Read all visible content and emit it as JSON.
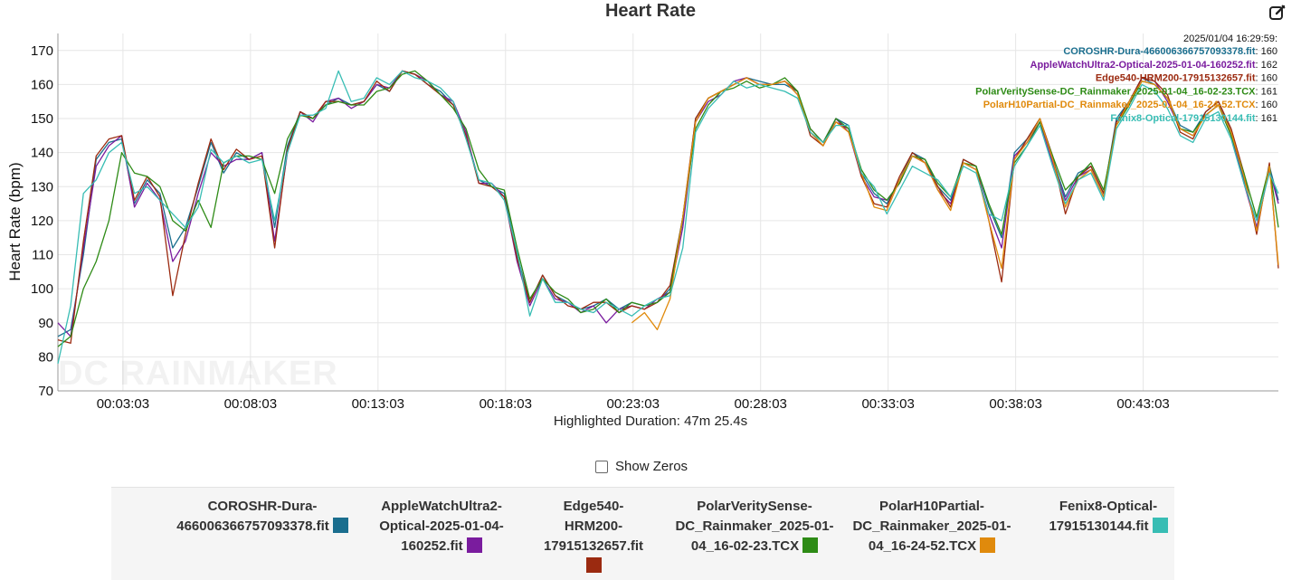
{
  "toolbar": {
    "edit_icon": "edit-square-icon"
  },
  "footer": {
    "duration_text": "Highlighted Duration: 47m 25.4s",
    "show_zeros_label": "Show Zeros",
    "show_zeros_checked": false
  },
  "chart_data": {
    "type": "line",
    "title": "Heart Rate",
    "ylabel": "Heart Rate (bpm)",
    "xlabel": "",
    "ylim": [
      70,
      175
    ],
    "yticks": [
      70,
      80,
      90,
      100,
      110,
      120,
      130,
      140,
      150,
      160,
      170
    ],
    "xlim": [
      0.5,
      48.35
    ],
    "xticks": [
      3.05,
      8.05,
      13.05,
      18.05,
      23.05,
      28.05,
      33.05,
      38.05,
      43.05
    ],
    "xtick_labels": [
      "00:03:03",
      "00:08:03",
      "00:13:03",
      "00:18:03",
      "00:23:03",
      "00:28:03",
      "00:33:03",
      "00:38:03",
      "00:43:03"
    ],
    "grid": true,
    "watermark": "DC RAINMAKER",
    "hover": {
      "timestamp": "2025/01/04 16:29:59:",
      "entries": [
        {
          "name": "COROSHR-Dura-466006366757093378.fit",
          "value": 160
        },
        {
          "name": "AppleWatchUltra2-Optical-2025-01-04-160252.fit",
          "value": 162
        },
        {
          "name": "Edge540-HRM200-17915132657.fit",
          "value": 160
        },
        {
          "name": "PolarVeritySense-DC_Rainmaker_2025-01-04_16-02-23.TCX",
          "value": 161
        },
        {
          "name": "PolarH10Partial-DC_Rainmaker_2025-01-04_16-24-52.TCX",
          "value": 160
        },
        {
          "name": "Fenix8-Optical-17915130144.fit",
          "value": 161
        }
      ]
    },
    "x": [
      0.5,
      1.0,
      1.5,
      2.0,
      2.5,
      3.0,
      3.5,
      4.0,
      4.5,
      5.0,
      5.5,
      6.0,
      6.5,
      7.0,
      7.5,
      8.0,
      8.5,
      9.0,
      9.5,
      10.0,
      10.5,
      11.0,
      11.5,
      12.0,
      12.5,
      13.0,
      13.5,
      14.0,
      14.5,
      15.0,
      15.5,
      16.0,
      16.5,
      17.0,
      17.5,
      18.0,
      18.5,
      19.0,
      19.5,
      20.0,
      20.5,
      21.0,
      21.5,
      22.0,
      22.5,
      23.0,
      23.5,
      24.0,
      24.5,
      25.0,
      25.5,
      26.0,
      26.5,
      27.0,
      27.5,
      28.0,
      28.5,
      29.0,
      29.5,
      30.0,
      30.5,
      31.0,
      31.5,
      32.0,
      32.5,
      33.0,
      33.5,
      34.0,
      34.5,
      35.0,
      35.5,
      36.0,
      36.5,
      37.0,
      37.5,
      38.0,
      38.5,
      39.0,
      39.5,
      40.0,
      40.5,
      41.0,
      41.5,
      42.0,
      42.5,
      43.0,
      43.5,
      44.0,
      44.5,
      45.0,
      45.5,
      46.0,
      46.5,
      47.0,
      47.5,
      48.0,
      48.35
    ],
    "series": [
      {
        "name": "COROSHR-Dura-466006366757093378.fit",
        "color": "#1a6e8e",
        "values": [
          86,
          88,
          110,
          138,
          143,
          144,
          125,
          132,
          128,
          112,
          118,
          130,
          143,
          134,
          140,
          138,
          140,
          118,
          142,
          152,
          150,
          154,
          156,
          154,
          155,
          160,
          158,
          164,
          163,
          160,
          158,
          154,
          145,
          132,
          130,
          128,
          110,
          96,
          104,
          98,
          96,
          94,
          95,
          97,
          94,
          96,
          95,
          96,
          100,
          120,
          150,
          156,
          158,
          160,
          162,
          161,
          160,
          160,
          158,
          146,
          142,
          150,
          148,
          134,
          128,
          125,
          132,
          140,
          138,
          130,
          126,
          138,
          136,
          124,
          115,
          140,
          144,
          150,
          138,
          127,
          134,
          136,
          128,
          150,
          155,
          162,
          160,
          156,
          148,
          146,
          152,
          155,
          146,
          132,
          118,
          136,
          126
        ]
      },
      {
        "name": "AppleWatchUltra2-Optical-2025-01-04-160252.fit",
        "color": "#7a1c9e",
        "values": [
          90,
          86,
          112,
          136,
          142,
          145,
          124,
          131,
          126,
          108,
          114,
          128,
          140,
          136,
          138,
          138,
          140,
          114,
          140,
          152,
          149,
          155,
          156,
          153,
          155,
          160,
          159,
          164,
          163,
          161,
          157,
          155,
          146,
          131,
          131,
          127,
          108,
          95,
          103,
          97,
          96,
          93,
          95,
          90,
          94,
          95,
          94,
          97,
          99,
          118,
          149,
          155,
          157,
          161,
          162,
          160,
          160,
          161,
          157,
          147,
          143,
          150,
          146,
          133,
          127,
          126,
          131,
          139,
          137,
          129,
          125,
          137,
          135,
          122,
          112,
          139,
          143,
          149,
          137,
          126,
          133,
          135,
          127,
          149,
          154,
          162,
          161,
          155,
          147,
          145,
          151,
          154,
          145,
          131,
          118,
          135,
          125
        ]
      },
      {
        "name": "Edge540-HRM200-17915132657.fit",
        "color": "#9b2a10",
        "values": [
          85,
          84,
          114,
          139,
          144,
          145,
          126,
          133,
          127,
          98,
          116,
          131,
          144,
          135,
          141,
          138,
          139,
          112,
          141,
          152,
          150,
          155,
          155,
          154,
          155,
          161,
          158,
          164,
          163,
          160,
          157,
          154,
          145,
          131,
          130,
          127,
          109,
          96,
          104,
          98,
          95,
          94,
          96,
          96,
          93,
          95,
          94,
          96,
          101,
          121,
          150,
          156,
          158,
          160,
          162,
          160,
          160,
          161,
          158,
          145,
          142,
          149,
          147,
          133,
          125,
          124,
          133,
          140,
          137,
          130,
          124,
          138,
          136,
          120,
          102,
          138,
          144,
          150,
          139,
          122,
          133,
          136,
          128,
          149,
          155,
          162,
          161,
          157,
          146,
          144,
          152,
          155,
          147,
          134,
          116,
          137,
          106
        ]
      },
      {
        "name": "PolarVeritySense-DC_Rainmaker_2025-01-04_16-02-23.TCX",
        "color": "#2e8b16",
        "values": [
          83,
          86,
          100,
          108,
          120,
          140,
          134,
          133,
          130,
          120,
          117,
          126,
          118,
          137,
          139,
          139,
          138,
          128,
          144,
          151,
          150,
          154,
          155,
          154,
          154,
          158,
          159,
          163,
          164,
          161,
          157,
          153,
          147,
          135,
          130,
          129,
          112,
          97,
          103,
          99,
          97,
          93,
          94,
          97,
          93,
          96,
          95,
          96,
          99,
          121,
          147,
          154,
          158,
          159,
          161,
          159,
          160,
          162,
          158,
          147,
          143,
          150,
          147,
          135,
          129,
          126,
          131,
          139,
          138,
          131,
          127,
          137,
          136,
          125,
          116,
          137,
          142,
          149,
          139,
          129,
          133,
          137,
          129,
          148,
          154,
          161,
          160,
          156,
          147,
          146,
          151,
          154,
          145,
          134,
          121,
          136,
          118
        ]
      },
      {
        "name": "PolarH10Partial-DC_Rainmaker_2025-01-04_16-24-52.TCX",
        "color": "#e08a0c",
        "values": [
          null,
          null,
          null,
          null,
          null,
          null,
          null,
          null,
          null,
          null,
          null,
          null,
          null,
          null,
          null,
          null,
          null,
          null,
          null,
          null,
          null,
          null,
          null,
          null,
          null,
          null,
          null,
          null,
          null,
          null,
          null,
          null,
          null,
          null,
          null,
          null,
          null,
          null,
          null,
          null,
          null,
          null,
          null,
          null,
          null,
          90,
          93,
          88,
          97,
          121,
          149,
          156,
          158,
          160,
          162,
          160,
          160,
          161,
          157,
          146,
          142,
          149,
          146,
          134,
          124,
          123,
          132,
          139,
          137,
          129,
          123,
          137,
          135,
          120,
          106,
          138,
          143,
          150,
          138,
          124,
          132,
          135,
          127,
          148,
          155,
          161,
          160,
          156,
          147,
          145,
          151,
          154,
          146,
          133,
          117,
          136,
          107
        ]
      },
      {
        "name": "Fenix8-Optical-17915130144.fit",
        "color": "#38bdb4",
        "values": [
          78,
          95,
          128,
          132,
          140,
          143,
          128,
          130,
          126,
          122,
          118,
          124,
          141,
          137,
          139,
          137,
          138,
          120,
          140,
          151,
          151,
          153,
          164,
          155,
          156,
          162,
          160,
          164,
          162,
          161,
          159,
          155,
          144,
          132,
          131,
          126,
          111,
          92,
          103,
          96,
          96,
          94,
          93,
          96,
          94,
          92,
          95,
          97,
          98,
          112,
          146,
          153,
          157,
          161,
          159,
          160,
          159,
          158,
          156,
          146,
          143,
          148,
          148,
          134,
          130,
          122,
          129,
          136,
          134,
          132,
          127,
          136,
          134,
          122,
          120,
          136,
          142,
          148,
          136,
          125,
          132,
          134,
          126,
          147,
          153,
          160,
          158,
          153,
          145,
          143,
          150,
          152,
          144,
          131,
          120,
          134,
          128
        ]
      }
    ]
  }
}
